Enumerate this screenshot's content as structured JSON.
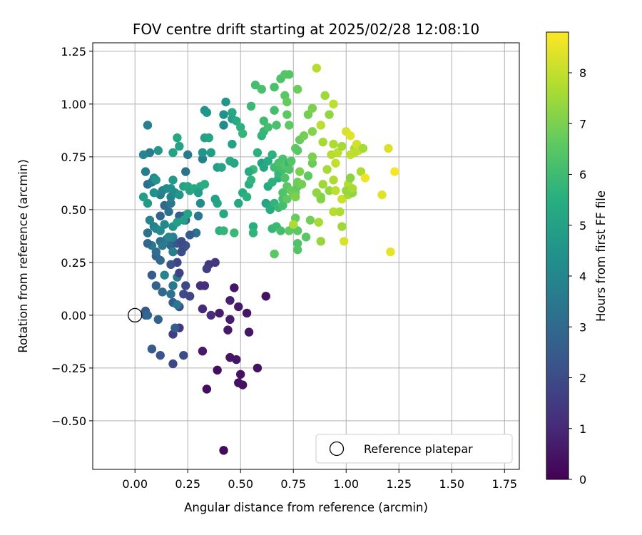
{
  "chart_data": {
    "type": "scatter",
    "title": "FOV centre drift starting at 2025/02/28 12:08:10",
    "xlabel": "Angular distance from reference (arcmin)",
    "ylabel": "Rotation from reference (arcmin)",
    "xlim": [
      -0.2,
      1.82
    ],
    "ylim": [
      -0.73,
      1.29
    ],
    "xticks": [
      "0.00",
      "0.25",
      "0.50",
      "0.75",
      "1.00",
      "1.25",
      "1.50",
      "1.75"
    ],
    "xtick_values": [
      0,
      0.25,
      0.5,
      0.75,
      1.0,
      1.25,
      1.5,
      1.75
    ],
    "yticks": [
      "1.25",
      "1.00",
      "0.75",
      "0.50",
      "0.25",
      "0.00",
      "−0.25",
      "−0.50"
    ],
    "ytick_values": [
      1.25,
      1.0,
      0.75,
      0.5,
      0.25,
      0,
      -0.25,
      -0.5
    ],
    "grid": true,
    "colormap": "viridis",
    "colorbar": {
      "label": "Hours from first FF file",
      "range": [
        0,
        8.8
      ],
      "ticks": [
        "0",
        "1",
        "2",
        "3",
        "4",
        "5",
        "6",
        "7",
        "8"
      ],
      "tick_values": [
        0,
        1,
        2,
        3,
        4,
        5,
        6,
        7,
        8
      ]
    },
    "legend": {
      "position": "lower right",
      "entries": [
        "Reference platepar"
      ]
    },
    "reference_point": {
      "x": 0,
      "y": 0
    },
    "points": [
      [
        0.42,
        -0.64,
        0.2
      ],
      [
        0.34,
        -0.35,
        0.3
      ],
      [
        0.39,
        -0.26,
        0.3
      ],
      [
        0.49,
        -0.32,
        0.4
      ],
      [
        0.51,
        -0.33,
        0.4
      ],
      [
        0.5,
        -0.28,
        0.4
      ],
      [
        0.45,
        -0.2,
        0.5
      ],
      [
        0.48,
        -0.21,
        0.5
      ],
      [
        0.58,
        -0.25,
        0.4
      ],
      [
        0.32,
        -0.17,
        0.6
      ],
      [
        0.54,
        -0.08,
        0.5
      ],
      [
        0.44,
        -0.07,
        0.6
      ],
      [
        0.45,
        -0.02,
        0.7
      ],
      [
        0.4,
        0.01,
        0.7
      ],
      [
        0.49,
        0.04,
        0.6
      ],
      [
        0.53,
        0.01,
        0.5
      ],
      [
        0.47,
        0.13,
        0.5
      ],
      [
        0.62,
        0.09,
        0.4
      ],
      [
        0.45,
        0.07,
        0.8
      ],
      [
        0.32,
        0.03,
        1.0
      ],
      [
        0.36,
        0.0,
        1.1
      ],
      [
        0.31,
        0.14,
        1.2
      ],
      [
        0.33,
        0.14,
        1.2
      ],
      [
        0.35,
        0.24,
        1.3
      ],
      [
        0.38,
        0.25,
        1.4
      ],
      [
        0.34,
        0.22,
        1.6
      ],
      [
        0.18,
        -0.23,
        1.9
      ],
      [
        0.23,
        -0.19,
        2.0
      ],
      [
        0.21,
        -0.06,
        1.3
      ],
      [
        0.18,
        -0.09,
        1.6
      ],
      [
        0.19,
        -0.06,
        2.6
      ],
      [
        0.12,
        -0.19,
        2.3
      ],
      [
        0.08,
        -0.16,
        2.5
      ],
      [
        0.11,
        -0.02,
        2.8
      ],
      [
        0.05,
        0.02,
        2.4
      ],
      [
        0.05,
        0.0,
        2.8
      ],
      [
        0.06,
        0.0,
        3.0
      ],
      [
        0.21,
        0.04,
        2.1
      ],
      [
        0.23,
        0.1,
        2.0
      ],
      [
        0.24,
        0.14,
        1.9
      ],
      [
        0.26,
        0.09,
        1.8
      ],
      [
        0.18,
        0.06,
        2.6
      ],
      [
        0.2,
        0.05,
        3.5
      ],
      [
        0.17,
        0.1,
        3.3
      ],
      [
        0.13,
        0.11,
        3.0
      ],
      [
        0.1,
        0.14,
        2.8
      ],
      [
        0.18,
        0.14,
        3.5
      ],
      [
        0.2,
        0.18,
        3.6
      ],
      [
        0.14,
        0.19,
        3.9
      ],
      [
        0.21,
        0.2,
        1.7
      ],
      [
        0.2,
        0.25,
        1.8
      ],
      [
        0.17,
        0.24,
        2.2
      ],
      [
        0.08,
        0.19,
        2.5
      ],
      [
        0.1,
        0.28,
        2.7
      ],
      [
        0.12,
        0.26,
        3.0
      ],
      [
        0.1,
        0.3,
        3.1
      ],
      [
        0.12,
        0.35,
        3.2
      ],
      [
        0.15,
        0.36,
        3.4
      ],
      [
        0.17,
        0.33,
        2.9
      ],
      [
        0.13,
        0.33,
        3.6
      ],
      [
        0.2,
        0.34,
        2.4
      ],
      [
        0.22,
        0.3,
        2.1
      ],
      [
        0.23,
        0.32,
        2.0
      ],
      [
        0.24,
        0.33,
        2.2
      ],
      [
        0.18,
        0.3,
        3.8
      ],
      [
        0.08,
        0.33,
        3.5
      ],
      [
        0.06,
        0.34,
        2.9
      ],
      [
        0.06,
        0.39,
        3.3
      ],
      [
        0.09,
        0.42,
        3.6
      ],
      [
        0.07,
        0.45,
        3.9
      ],
      [
        0.1,
        0.41,
        4.0
      ],
      [
        0.12,
        0.4,
        4.2
      ],
      [
        0.14,
        0.43,
        4.1
      ],
      [
        0.12,
        0.47,
        2.8
      ],
      [
        0.16,
        0.49,
        3.3
      ],
      [
        0.21,
        0.47,
        2.6
      ],
      [
        0.23,
        0.47,
        2.7
      ],
      [
        0.24,
        0.45,
        2.7
      ],
      [
        0.18,
        0.42,
        4.5
      ],
      [
        0.2,
        0.44,
        4.8
      ],
      [
        0.23,
        0.45,
        4.9
      ],
      [
        0.25,
        0.48,
        5.0
      ],
      [
        0.14,
        0.52,
        3.0
      ],
      [
        0.17,
        0.53,
        3.5
      ],
      [
        0.17,
        0.56,
        3.9
      ],
      [
        0.19,
        0.58,
        4.2
      ],
      [
        0.21,
        0.57,
        4.6
      ],
      [
        0.23,
        0.61,
        5.0
      ],
      [
        0.25,
        0.61,
        5.2
      ],
      [
        0.26,
        0.59,
        5.1
      ],
      [
        0.28,
        0.6,
        5.3
      ],
      [
        0.31,
        0.61,
        5.4
      ],
      [
        0.33,
        0.62,
        5.5
      ],
      [
        0.3,
        0.58,
        4.8
      ],
      [
        0.31,
        0.53,
        4.2
      ],
      [
        0.3,
        0.47,
        3.5
      ],
      [
        0.29,
        0.39,
        3.3
      ],
      [
        0.26,
        0.38,
        2.5
      ],
      [
        0.22,
        0.35,
        2.0
      ],
      [
        0.18,
        0.37,
        3.8
      ],
      [
        0.16,
        0.37,
        4.0
      ],
      [
        0.12,
        0.57,
        3.7
      ],
      [
        0.13,
        0.59,
        3.9
      ],
      [
        0.15,
        0.6,
        4.1
      ],
      [
        0.17,
        0.6,
        4.3
      ],
      [
        0.09,
        0.58,
        4.4
      ],
      [
        0.06,
        0.53,
        4.7
      ],
      [
        0.04,
        0.56,
        4.9
      ],
      [
        0.06,
        0.62,
        3.2
      ],
      [
        0.08,
        0.63,
        3.4
      ],
      [
        0.09,
        0.65,
        4.2
      ],
      [
        0.1,
        0.64,
        4.5
      ],
      [
        0.18,
        0.64,
        4.7
      ],
      [
        0.05,
        0.68,
        3.7
      ],
      [
        0.06,
        0.9,
        3.8
      ],
      [
        0.07,
        0.77,
        3.7
      ],
      [
        0.04,
        0.76,
        4.0
      ],
      [
        0.11,
        0.78,
        4.6
      ],
      [
        0.18,
        0.77,
        5.0
      ],
      [
        0.2,
        0.84,
        5.2
      ],
      [
        0.21,
        0.8,
        5.0
      ],
      [
        0.25,
        0.76,
        3.6
      ],
      [
        0.24,
        0.68,
        3.3
      ],
      [
        0.32,
        0.74,
        3.8
      ],
      [
        0.32,
        0.77,
        4.6
      ],
      [
        0.33,
        0.84,
        5.0
      ],
      [
        0.35,
        0.84,
        5.1
      ],
      [
        0.33,
        0.97,
        4.4
      ],
      [
        0.34,
        0.96,
        4.6
      ],
      [
        0.36,
        0.77,
        4.8
      ],
      [
        0.39,
        0.7,
        4.9
      ],
      [
        0.41,
        0.7,
        5.1
      ],
      [
        0.45,
        0.73,
        5.3
      ],
      [
        0.42,
        0.9,
        4.2
      ],
      [
        0.42,
        0.95,
        4.4
      ],
      [
        0.43,
        1.01,
        4.6
      ],
      [
        0.46,
        0.93,
        4.8
      ],
      [
        0.46,
        0.96,
        5.2
      ],
      [
        0.48,
        0.92,
        5.4
      ],
      [
        0.5,
        0.89,
        5.6
      ],
      [
        0.51,
        0.86,
        5.8
      ],
      [
        0.46,
        0.81,
        5.0
      ],
      [
        0.47,
        0.72,
        5.2
      ],
      [
        0.39,
        0.53,
        5.2
      ],
      [
        0.38,
        0.55,
        5.0
      ],
      [
        0.42,
        0.48,
        5.3
      ],
      [
        0.4,
        0.4,
        5.6
      ],
      [
        0.42,
        0.4,
        5.8
      ],
      [
        0.47,
        0.39,
        5.9
      ],
      [
        0.49,
        0.53,
        5.2
      ],
      [
        0.51,
        0.58,
        5.4
      ],
      [
        0.53,
        0.56,
        5.6
      ],
      [
        0.54,
        0.62,
        5.5
      ],
      [
        0.55,
        0.64,
        5.7
      ],
      [
        0.56,
        0.69,
        5.9
      ],
      [
        0.54,
        0.68,
        5.4
      ],
      [
        0.55,
        0.99,
        5.9
      ],
      [
        0.57,
        1.09,
        6.1
      ],
      [
        0.6,
        1.07,
        6.2
      ],
      [
        0.58,
        0.77,
        5.6
      ],
      [
        0.6,
        0.85,
        5.7
      ],
      [
        0.61,
        0.87,
        5.8
      ],
      [
        0.61,
        0.92,
        6.0
      ],
      [
        0.63,
        0.89,
        6.1
      ],
      [
        0.6,
        0.72,
        5.0
      ],
      [
        0.61,
        0.7,
        5.2
      ],
      [
        0.63,
        0.73,
        5.4
      ],
      [
        0.65,
        0.76,
        5.6
      ],
      [
        0.63,
        0.61,
        5.3
      ],
      [
        0.62,
        0.53,
        5.1
      ],
      [
        0.64,
        0.51,
        5.3
      ],
      [
        0.65,
        0.63,
        5.6
      ],
      [
        0.56,
        0.42,
        5.5
      ],
      [
        0.56,
        0.39,
        5.7
      ],
      [
        0.65,
        0.41,
        5.8
      ],
      [
        0.67,
        0.42,
        5.9
      ],
      [
        0.69,
        0.4,
        6.1
      ],
      [
        0.66,
        0.29,
        6.5
      ],
      [
        0.64,
        0.5,
        5.4
      ],
      [
        0.66,
        0.53,
        5.7
      ],
      [
        0.68,
        0.51,
        5.9
      ],
      [
        0.7,
        0.52,
        6.1
      ],
      [
        0.7,
        0.55,
        6.2
      ],
      [
        0.7,
        0.58,
        6.3
      ],
      [
        0.68,
        0.65,
        5.6
      ],
      [
        0.68,
        0.67,
        5.8
      ],
      [
        0.66,
        0.7,
        6.0
      ],
      [
        0.68,
        0.72,
        6.2
      ],
      [
        0.7,
        0.69,
        6.1
      ],
      [
        0.7,
        0.74,
        6.2
      ],
      [
        0.71,
        0.71,
        6.4
      ],
      [
        0.71,
        0.65,
        6.3
      ],
      [
        0.72,
        0.61,
        6.5
      ],
      [
        0.72,
        0.55,
        6.6
      ],
      [
        0.73,
        0.72,
        5.8
      ],
      [
        0.74,
        0.59,
        6.7
      ],
      [
        0.75,
        0.57,
        6.9
      ],
      [
        0.76,
        0.58,
        6.8
      ],
      [
        0.76,
        0.56,
        7.0
      ],
      [
        0.77,
        0.61,
        6.6
      ],
      [
        0.77,
        0.63,
        6.8
      ],
      [
        0.78,
        0.68,
        7.0
      ],
      [
        0.79,
        0.62,
        6.9
      ],
      [
        0.75,
        0.42,
        6.2
      ],
      [
        0.77,
        0.34,
        6.3
      ],
      [
        0.77,
        0.31,
        6.4
      ],
      [
        0.77,
        0.4,
        6.5
      ],
      [
        0.73,
        0.4,
        6.6
      ],
      [
        0.76,
        0.46,
        6.7
      ],
      [
        0.75,
        0.43,
        7.7
      ],
      [
        0.81,
        0.37,
        6.5
      ],
      [
        0.83,
        0.45,
        6.9
      ],
      [
        0.82,
        0.66,
        6.6
      ],
      [
        0.84,
        0.72,
        6.8
      ],
      [
        0.84,
        0.75,
        7.0
      ],
      [
        0.84,
        0.87,
        7.1
      ],
      [
        0.82,
        0.95,
        6.9
      ],
      [
        0.84,
        0.98,
        7.0
      ],
      [
        0.78,
        0.83,
        6.7
      ],
      [
        0.8,
        0.85,
        6.9
      ],
      [
        0.67,
        0.9,
        6.2
      ],
      [
        0.66,
        0.97,
        6.1
      ],
      [
        0.66,
        1.08,
        6.2
      ],
      [
        0.69,
        1.12,
        6.3
      ],
      [
        0.71,
        1.04,
        6.5
      ],
      [
        0.71,
        1.14,
        6.4
      ],
      [
        0.73,
        1.14,
        6.4
      ],
      [
        0.77,
        1.07,
        6.8
      ],
      [
        0.72,
        0.95,
        6.6
      ],
      [
        0.73,
        0.9,
        6.6
      ],
      [
        0.72,
        1.01,
        6.7
      ],
      [
        0.73,
        0.69,
        6.3
      ],
      [
        0.74,
        0.73,
        6.4
      ],
      [
        0.76,
        0.79,
        6.6
      ],
      [
        0.77,
        0.78,
        6.5
      ],
      [
        0.86,
        1.17,
        7.8
      ],
      [
        0.88,
        0.9,
        7.9
      ],
      [
        0.89,
        0.82,
        7.6
      ],
      [
        0.9,
        1.04,
        7.5
      ],
      [
        0.92,
        0.95,
        7.3
      ],
      [
        0.93,
        0.76,
        7.8
      ],
      [
        0.94,
        1.0,
        7.9
      ],
      [
        0.94,
        0.81,
        7.7
      ],
      [
        0.91,
        0.69,
        7.6
      ],
      [
        0.94,
        0.64,
        7.7
      ],
      [
        0.89,
        0.62,
        7.5
      ],
      [
        0.92,
        0.59,
        7.4
      ],
      [
        0.88,
        0.55,
        7.2
      ],
      [
        0.94,
        0.49,
        7.8
      ],
      [
        0.95,
        0.59,
        7.9
      ],
      [
        0.95,
        0.72,
        8.0
      ],
      [
        0.96,
        0.77,
        7.9
      ],
      [
        0.98,
        0.8,
        7.6
      ],
      [
        0.98,
        0.55,
        8.1
      ],
      [
        0.97,
        0.49,
        7.7
      ],
      [
        0.98,
        0.42,
        7.5
      ],
      [
        0.99,
        0.35,
        8.3
      ],
      [
        0.87,
        0.44,
        7.6
      ],
      [
        0.88,
        0.35,
        7.4
      ],
      [
        0.88,
        0.56,
        7.1
      ],
      [
        0.86,
        0.58,
        7.3
      ],
      [
        1.0,
        0.87,
        8.3
      ],
      [
        1.02,
        0.85,
        8.4
      ],
      [
        1.02,
        0.76,
        8.0
      ],
      [
        1.04,
        0.79,
        7.7
      ],
      [
        1.05,
        0.81,
        8.2
      ],
      [
        1.06,
        0.78,
        8.1
      ],
      [
        1.08,
        0.79,
        7.6
      ],
      [
        1.01,
        0.62,
        7.8
      ],
      [
        1.01,
        0.57,
        7.6
      ],
      [
        1.02,
        0.65,
        7.2
      ],
      [
        1.03,
        0.58,
        7.3
      ],
      [
        1.04,
        0.77,
        7.9
      ],
      [
        1.07,
        0.68,
        7.7
      ],
      [
        1.09,
        0.65,
        8.6
      ],
      [
        1.17,
        0.57,
        8.4
      ],
      [
        1.2,
        0.79,
        8.3
      ],
      [
        1.21,
        0.3,
        8.5
      ],
      [
        1.23,
        0.68,
        8.7
      ],
      [
        1.0,
        0.59,
        7.4
      ],
      [
        1.03,
        0.6,
        7.6
      ]
    ]
  }
}
